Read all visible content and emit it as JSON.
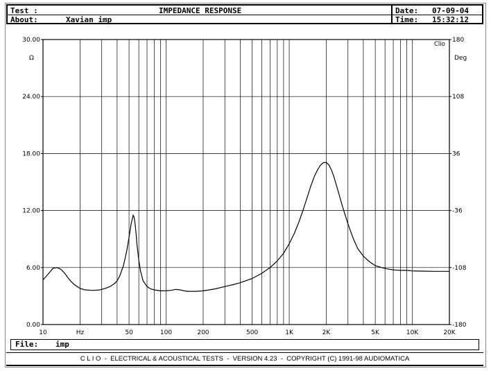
{
  "header": {
    "test_label": "Test :",
    "about_label": "About:",
    "about_value": "Xavian imp",
    "title": "IMPEDANCE RESPONSE",
    "date_label": "Date:",
    "date_value": "07-09-04",
    "time_label": "Time:",
    "time_value": "15:32:12"
  },
  "chart_data": {
    "type": "line",
    "title": "IMPEDANCE RESPONSE",
    "xscale": "log",
    "xlim": [
      10,
      20000
    ],
    "ylim": [
      0,
      30
    ],
    "ylabel": "Ω",
    "y2label": "Deg",
    "y2lim": [
      -180,
      180
    ],
    "grid": true,
    "x_ticks": [
      {
        "v": 10,
        "label": "10"
      },
      {
        "v": 20,
        "label": "Hz"
      },
      {
        "v": 50,
        "label": "50"
      },
      {
        "v": 100,
        "label": "100"
      },
      {
        "v": 200,
        "label": "200"
      },
      {
        "v": 500,
        "label": "500"
      },
      {
        "v": 1000,
        "label": "1K"
      },
      {
        "v": 2000,
        "label": "2K"
      },
      {
        "v": 5000,
        "label": "5K"
      },
      {
        "v": 10000,
        "label": "10K"
      },
      {
        "v": 20000,
        "label": "20K"
      }
    ],
    "y_ticks": [
      {
        "v": 0,
        "label": "0.00"
      },
      {
        "v": 6,
        "label": "6.00"
      },
      {
        "v": 12,
        "label": "12.00"
      },
      {
        "v": 18,
        "label": "18.00"
      },
      {
        "v": 24,
        "label": "24.00"
      },
      {
        "v": 30,
        "label": "30.00"
      }
    ],
    "y2_ticks": [
      {
        "v": -180,
        "label": "-180"
      },
      {
        "v": -108,
        "label": "-108"
      },
      {
        "v": -36,
        "label": "-36"
      },
      {
        "v": 36,
        "label": "36"
      },
      {
        "v": 108,
        "label": "108"
      },
      {
        "v": 180,
        "label": "180"
      }
    ],
    "brand": "Clio",
    "series": [
      {
        "x": [
          10,
          11,
          12,
          13,
          14,
          15,
          16,
          17,
          18,
          20,
          22,
          25,
          28,
          30,
          32,
          35,
          38,
          40,
          42,
          45,
          48,
          50,
          52,
          54,
          55,
          56,
          57,
          58,
          60,
          62,
          65,
          70,
          75,
          80,
          90,
          100,
          110,
          120,
          130,
          140,
          150,
          175,
          200,
          250,
          300,
          350,
          400,
          500,
          600,
          700,
          800,
          900,
          1000,
          1100,
          1200,
          1300,
          1400,
          1500,
          1600,
          1700,
          1800,
          1900,
          2000,
          2100,
          2200,
          2300,
          2400,
          2500,
          2700,
          3000,
          3300,
          3600,
          4000,
          4500,
          5000,
          6000,
          7000,
          8000,
          9000,
          10000,
          12000,
          15000,
          18000,
          20000
        ],
        "values": [
          4.7,
          5.3,
          5.9,
          6.0,
          5.8,
          5.4,
          4.9,
          4.5,
          4.2,
          3.8,
          3.65,
          3.6,
          3.62,
          3.7,
          3.8,
          4.0,
          4.3,
          4.6,
          5.1,
          6.2,
          7.8,
          9.2,
          10.6,
          11.5,
          11.3,
          10.6,
          9.6,
          8.4,
          6.8,
          5.6,
          4.6,
          4.0,
          3.75,
          3.65,
          3.55,
          3.55,
          3.6,
          3.7,
          3.65,
          3.55,
          3.5,
          3.5,
          3.55,
          3.75,
          4.0,
          4.2,
          4.4,
          4.85,
          5.4,
          6.0,
          6.7,
          7.5,
          8.5,
          9.6,
          10.8,
          12.1,
          13.4,
          14.6,
          15.6,
          16.3,
          16.8,
          17.05,
          17.05,
          16.8,
          16.3,
          15.6,
          14.8,
          14.0,
          12.5,
          10.6,
          9.1,
          8.0,
          7.2,
          6.6,
          6.2,
          5.9,
          5.75,
          5.7,
          5.7,
          5.65,
          5.62,
          5.6,
          5.6,
          5.6
        ]
      }
    ]
  },
  "file_bar": {
    "label": "File:",
    "value": "imp"
  },
  "footer": {
    "text": "C L I O  -  ELECTRICAL & ACOUSTICAL TESTS  -  VERSION 4.23  -  COPYRIGHT (C) 1991-98 AUDIOMATICA"
  }
}
